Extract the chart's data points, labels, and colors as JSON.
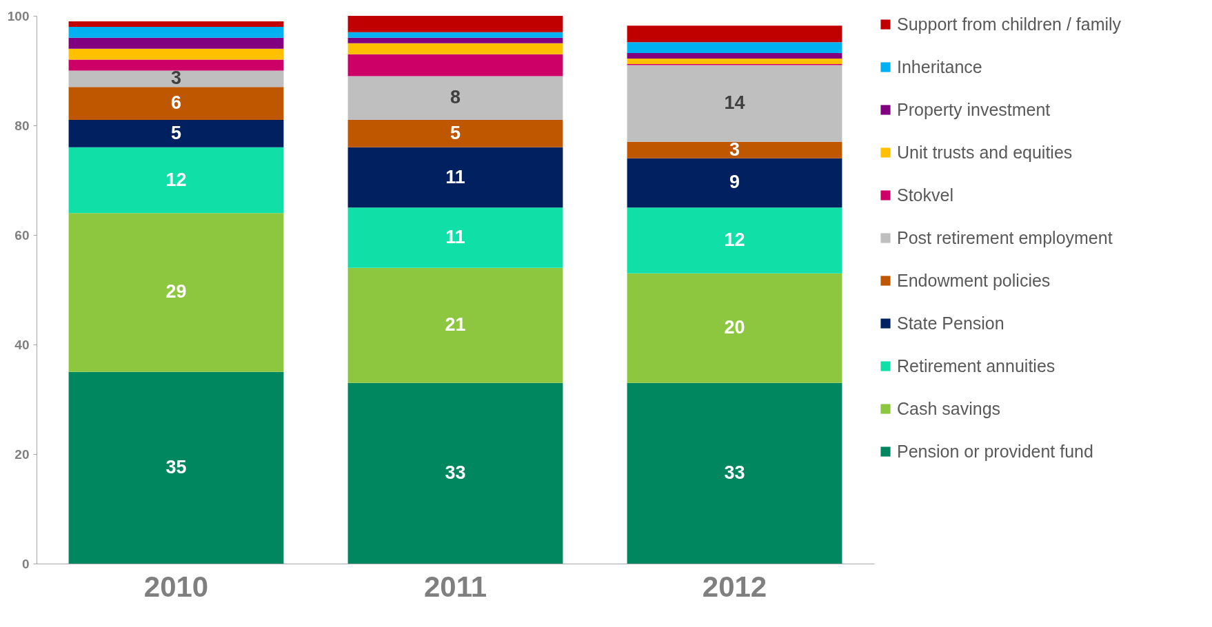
{
  "chart_data": {
    "type": "bar",
    "stacked": true,
    "categories": [
      "2010",
      "2011",
      "2012"
    ],
    "ylim": [
      0,
      100
    ],
    "yticks": [
      0,
      20,
      40,
      60,
      80,
      100
    ],
    "grid": false,
    "legend": "right",
    "series": [
      {
        "name": "Pension or provident fund",
        "color": "#00875f",
        "values": [
          35,
          33,
          33
        ],
        "value_labels": [
          "35",
          "33",
          "33"
        ]
      },
      {
        "name": "Cash savings",
        "color": "#8dc63f",
        "values": [
          29,
          21,
          20
        ],
        "value_labels": [
          "29",
          "21",
          "20"
        ]
      },
      {
        "name": "Retirement annuities",
        "color": "#10e0a8",
        "values": [
          12,
          11,
          12
        ],
        "value_labels": [
          "12",
          "11",
          "12"
        ]
      },
      {
        "name": "State Pension",
        "color": "#002060",
        "values": [
          5,
          11,
          9
        ],
        "value_labels": [
          "5",
          "11",
          "9"
        ]
      },
      {
        "name": "Endowment policies",
        "color": "#bf5700",
        "values": [
          6,
          5,
          3
        ],
        "value_labels": [
          "6",
          "5",
          "3"
        ]
      },
      {
        "name": "Post retirement employment",
        "color": "#bfbfbf",
        "values": [
          3,
          8,
          14
        ],
        "value_labels": [
          "3",
          "8",
          "14"
        ]
      },
      {
        "name": "Stokvel",
        "color": "#cc0066",
        "values": [
          2,
          4,
          0.2
        ],
        "value_labels": [
          null,
          null,
          null
        ]
      },
      {
        "name": "Unit trusts and equities",
        "color": "#ffc000",
        "values": [
          2,
          2,
          1
        ],
        "value_labels": [
          null,
          null,
          null
        ]
      },
      {
        "name": "Property investment",
        "color": "#800080",
        "values": [
          2,
          1,
          1
        ],
        "value_labels": [
          null,
          null,
          null
        ]
      },
      {
        "name": "Inheritance",
        "color": "#00b0f0",
        "values": [
          2,
          1,
          2
        ],
        "value_labels": [
          null,
          null,
          null
        ]
      },
      {
        "name": "Support from children / family",
        "color": "#c00000",
        "values": [
          1,
          3,
          3
        ],
        "value_labels": [
          null,
          null,
          null
        ]
      }
    ]
  }
}
